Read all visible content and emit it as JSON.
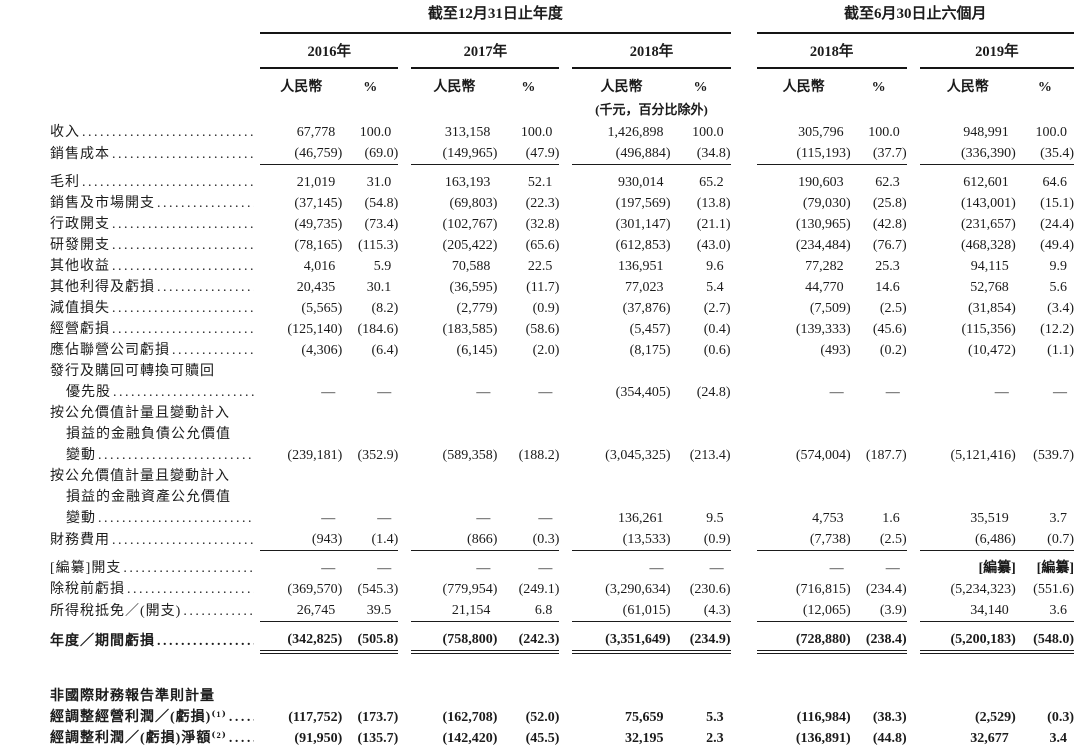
{
  "header": {
    "groups": [
      {
        "title": "截至12月31日止年度",
        "years": [
          "2016年",
          "2017年",
          "2018年"
        ]
      },
      {
        "title": "截至6月30日止六個月",
        "years": [
          "2018年",
          "2019年"
        ]
      }
    ],
    "currency_label": "人民幣",
    "percent_label": "%",
    "unit_note": "(千元，百分比除外)"
  },
  "table": {
    "rows": [
      {
        "label_lines": [
          "收入"
        ],
        "values": [
          "67,778",
          "100.0",
          "313,158",
          "100.0",
          "1,426,898",
          "100.0",
          "305,796",
          "100.0",
          "948,991",
          "100.0"
        ]
      },
      {
        "label_lines": [
          "銷售成本"
        ],
        "values": [
          "(46,759)",
          "(69.0)",
          "(149,965)",
          "(47.9)",
          "(496,884)",
          "(34.8)",
          "(115,193)",
          "(37.7)",
          "(336,390)",
          "(35.4)"
        ],
        "rule_after": "single"
      },
      {
        "label_lines": [
          "毛利"
        ],
        "values": [
          "21,019",
          "31.0",
          "163,193",
          "52.1",
          "930,014",
          "65.2",
          "190,603",
          "62.3",
          "612,601",
          "64.6"
        ]
      },
      {
        "label_lines": [
          "銷售及市場開支"
        ],
        "values": [
          "(37,145)",
          "(54.8)",
          "(69,803)",
          "(22.3)",
          "(197,569)",
          "(13.8)",
          "(79,030)",
          "(25.8)",
          "(143,001)",
          "(15.1)"
        ]
      },
      {
        "label_lines": [
          "行政開支"
        ],
        "values": [
          "(49,735)",
          "(73.4)",
          "(102,767)",
          "(32.8)",
          "(301,147)",
          "(21.1)",
          "(130,965)",
          "(42.8)",
          "(231,657)",
          "(24.4)"
        ]
      },
      {
        "label_lines": [
          "研發開支"
        ],
        "values": [
          "(78,165)",
          "(115.3)",
          "(205,422)",
          "(65.6)",
          "(612,853)",
          "(43.0)",
          "(234,484)",
          "(76.7)",
          "(468,328)",
          "(49.4)"
        ]
      },
      {
        "label_lines": [
          "其他收益"
        ],
        "values": [
          "4,016",
          "5.9",
          "70,588",
          "22.5",
          "136,951",
          "9.6",
          "77,282",
          "25.3",
          "94,115",
          "9.9"
        ]
      },
      {
        "label_lines": [
          "其他利得及虧損"
        ],
        "values": [
          "20,435",
          "30.1",
          "(36,595)",
          "(11.7)",
          "77,023",
          "5.4",
          "44,770",
          "14.6",
          "52,768",
          "5.6"
        ]
      },
      {
        "label_lines": [
          "減值損失"
        ],
        "values": [
          "(5,565)",
          "(8.2)",
          "(2,779)",
          "(0.9)",
          "(37,876)",
          "(2.7)",
          "(7,509)",
          "(2.5)",
          "(31,854)",
          "(3.4)"
        ]
      },
      {
        "label_lines": [
          "經營虧損"
        ],
        "values": [
          "(125,140)",
          "(184.6)",
          "(183,585)",
          "(58.6)",
          "(5,457)",
          "(0.4)",
          "(139,333)",
          "(45.6)",
          "(115,356)",
          "(12.2)"
        ]
      },
      {
        "label_lines": [
          "應佔聯營公司虧損"
        ],
        "values": [
          "(4,306)",
          "(6.4)",
          "(6,145)",
          "(2.0)",
          "(8,175)",
          "(0.6)",
          "(493)",
          "(0.2)",
          "(10,472)",
          "(1.1)"
        ]
      },
      {
        "label_lines": [
          "發行及購回可轉換可贖回",
          "優先股"
        ],
        "values": [
          "—",
          "—",
          "—",
          "—",
          "(354,405)",
          "(24.8)",
          "—",
          "—",
          "—",
          "—"
        ]
      },
      {
        "label_lines": [
          "按公允價值計量且變動計入",
          "損益的金融負債公允價值",
          "變動"
        ],
        "values": [
          "(239,181)",
          "(352.9)",
          "(589,358)",
          "(188.2)",
          "(3,045,325)",
          "(213.4)",
          "(574,004)",
          "(187.7)",
          "(5,121,416)",
          "(539.7)"
        ]
      },
      {
        "label_lines": [
          "按公允價值計量且變動計入",
          "損益的金融資產公允價值",
          "變動"
        ],
        "values": [
          "—",
          "—",
          "—",
          "—",
          "136,261",
          "9.5",
          "4,753",
          "1.6",
          "35,519",
          "3.7"
        ]
      },
      {
        "label_lines": [
          "財務費用"
        ],
        "values": [
          "(943)",
          "(1.4)",
          "(866)",
          "(0.3)",
          "(13,533)",
          "(0.9)",
          "(7,738)",
          "(2.5)",
          "(6,486)",
          "(0.7)"
        ],
        "rule_after": "single"
      },
      {
        "label_lines": [
          "[編纂]開支"
        ],
        "values": [
          "—",
          "—",
          "—",
          "—",
          "—",
          "—",
          "—",
          "—",
          "[編纂]",
          "[編纂]"
        ],
        "bold_cells": [
          8,
          9
        ]
      },
      {
        "label_lines": [
          "除稅前虧損"
        ],
        "values": [
          "(369,570)",
          "(545.3)",
          "(779,954)",
          "(249.1)",
          "(3,290,634)",
          "(230.6)",
          "(716,815)",
          "(234.4)",
          "(5,234,323)",
          "(551.6)"
        ]
      },
      {
        "label_lines": [
          "所得稅抵免／(開支)"
        ],
        "values": [
          "26,745",
          "39.5",
          "21,154",
          "6.8",
          "(61,015)",
          "(4.3)",
          "(12,065)",
          "(3.9)",
          "34,140",
          "3.6"
        ],
        "rule_after": "single"
      },
      {
        "label_lines": [
          "年度／期間虧損"
        ],
        "bold": true,
        "values": [
          "(342,825)",
          "(505.8)",
          "(758,800)",
          "(242.3)",
          "(3,351,649)",
          "(234.9)",
          "(728,880)",
          "(238.4)",
          "(5,200,183)",
          "(548.0)"
        ],
        "rule_after": "double"
      },
      {
        "spacer": "lg"
      },
      {
        "label_lines": [
          "非國際財務報告準則計量"
        ],
        "bold": true,
        "no_leaders": true,
        "values": null
      },
      {
        "label_lines": [
          "經調整經營利潤／(虧損)⁽¹⁾"
        ],
        "bold": true,
        "values": [
          "(117,752)",
          "(173.7)",
          "(162,708)",
          "(52.0)",
          "75,659",
          "5.3",
          "(116,984)",
          "(38.3)",
          "(2,529)",
          "(0.3)"
        ]
      },
      {
        "label_lines": [
          "經調整利潤／(虧損)淨額⁽²⁾"
        ],
        "bold": true,
        "values": [
          "(91,950)",
          "(135.7)",
          "(142,420)",
          "(45.5)",
          "32,195",
          "2.3",
          "(136,891)",
          "(44.8)",
          "32,677",
          "3.4"
        ]
      }
    ]
  }
}
